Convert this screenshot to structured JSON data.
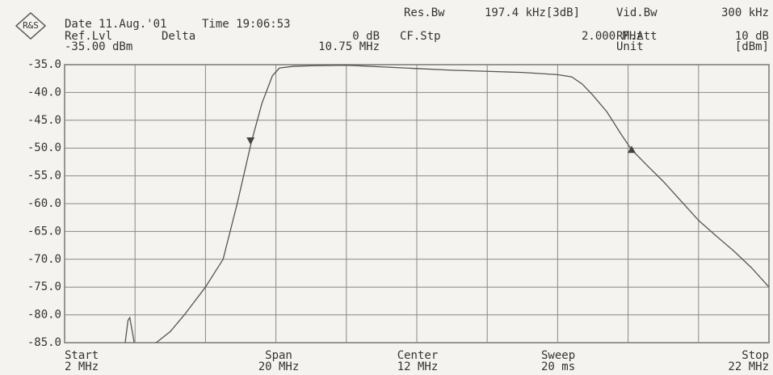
{
  "chart_data": {
    "type": "line",
    "header": [
      "Date 11.Aug.'01",
      "Time 19:06:53",
      "Ref.Lvl",
      "-35.00 dBm",
      "Delta",
      "0 dB",
      "10.75 MHz",
      "Res.Bw",
      "197.4 kHz[3dB]",
      "Vid.Bw",
      "300 kHz",
      "CF.Stp",
      "2.000 MHz",
      "RF.Att",
      "10 dB",
      "Unit",
      "[dBm]"
    ],
    "footer": [
      "Start",
      "2 MHz",
      "Span",
      "20 MHz",
      "Center",
      "12 MHz",
      "Sweep",
      "20 ms",
      "Stop",
      "22 MHz"
    ],
    "xlim": [
      2,
      22
    ],
    "xticks": [
      2,
      4,
      6,
      8,
      10,
      12,
      14,
      16,
      18,
      20,
      22
    ],
    "ylim": [
      -85,
      -35
    ],
    "yticks": [
      {
        "value": -35,
        "label": "-35.0"
      },
      {
        "value": -40,
        "label": "-40.0"
      },
      {
        "value": -45,
        "label": "-45.0"
      },
      {
        "value": -50,
        "label": "-50.0"
      },
      {
        "value": -55,
        "label": "-55.0"
      },
      {
        "value": -60,
        "label": "-60.0"
      },
      {
        "value": -65,
        "label": "-65.0"
      },
      {
        "value": -70,
        "label": "-70.0"
      },
      {
        "value": -75,
        "label": "-75.0"
      },
      {
        "value": -80,
        "label": "-80.0"
      },
      {
        "value": -85,
        "label": "-85.0"
      }
    ],
    "grid": true,
    "series": [
      {
        "color": "#555555",
        "x": [
          3.7,
          3.8,
          3.85,
          3.95,
          4.0,
          4.6,
          5.0,
          5.4,
          6.0,
          6.5,
          6.9,
          7.3,
          7.6,
          7.9,
          8.1,
          8.5,
          9.0,
          10.0,
          11.0,
          12.0,
          13.0,
          14.0,
          15.0,
          16.0,
          16.4,
          16.7,
          17.0,
          17.4,
          17.8,
          18.1,
          18.6,
          19.0,
          19.5,
          20.0,
          20.5,
          21.0,
          21.5,
          22.0
        ],
        "values": [
          -86,
          -81,
          -80.5,
          -84,
          -86,
          -85,
          -83,
          -80,
          -75,
          -70,
          -60,
          -49,
          -42,
          -37,
          -35.6,
          -35.3,
          -35.2,
          -35.1,
          -35.4,
          -35.7,
          -36.0,
          -36.2,
          -36.4,
          -36.8,
          -37.2,
          -38.5,
          -40.5,
          -43.5,
          -47.5,
          -50.3,
          -53.5,
          -56,
          -59.5,
          -63,
          -65.8,
          -68.5,
          -71.5,
          -75
        ]
      }
    ],
    "markers": [
      {
        "x": 7.28,
        "y": -48.8
      },
      {
        "x": 18.1,
        "y": -50.3
      }
    ]
  }
}
